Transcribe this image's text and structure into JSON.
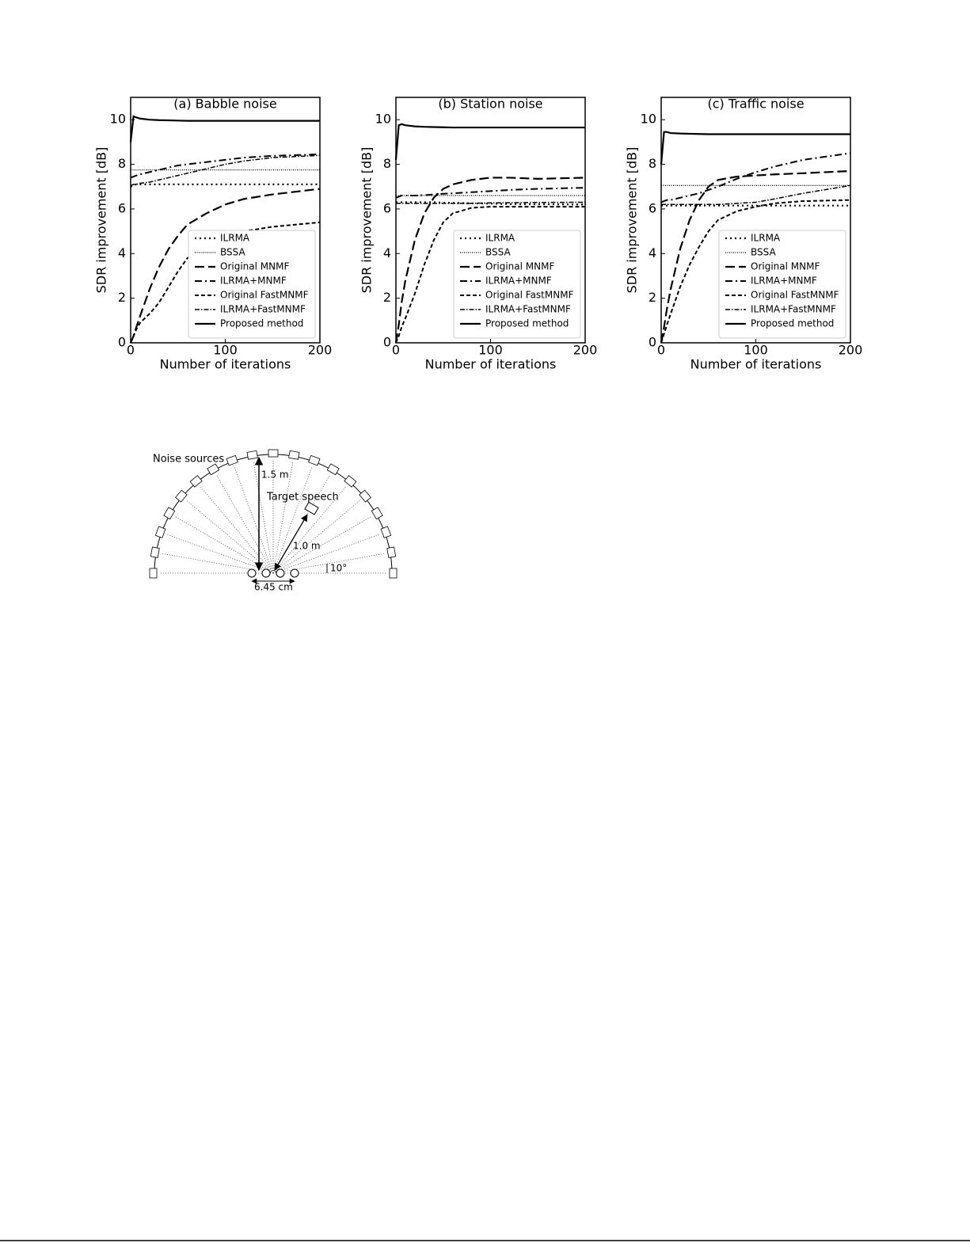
{
  "chart_data": [
    {
      "type": "line",
      "title": "(a) Babble noise",
      "x_label": "Number of iterations",
      "y_label": "SDR improvement [dB]",
      "x": [
        0,
        3,
        6,
        10,
        20,
        30,
        40,
        50,
        60,
        80,
        100,
        120,
        150,
        200
      ],
      "xlim": [
        0,
        200
      ],
      "ylim": [
        0,
        11
      ],
      "xticks": [
        0,
        100,
        200
      ],
      "yticks": [
        0,
        2,
        4,
        6,
        8,
        10
      ],
      "legend": "lower right",
      "series": [
        {
          "name": "ILRMA",
          "color": "#000000",
          "values": [
            7.0,
            7.05,
            7.1,
            7.1,
            7.1,
            7.1,
            7.1,
            7.1,
            7.1,
            7.1,
            7.1,
            7.1,
            7.1,
            7.1
          ]
        },
        {
          "name": "BSSA",
          "color": "#000000",
          "values": [
            7.75,
            7.75,
            7.75,
            7.75,
            7.75,
            7.75,
            7.75,
            7.75,
            7.75,
            7.75,
            7.75,
            7.75,
            7.75,
            7.75
          ]
        },
        {
          "name": "Original MNMF",
          "color": "#000000",
          "values": [
            0,
            0.3,
            0.7,
            1.2,
            2.4,
            3.4,
            4.2,
            4.8,
            5.3,
            5.8,
            6.2,
            6.45,
            6.65,
            6.9
          ]
        },
        {
          "name": "ILRMA+MNMF",
          "color": "#000000",
          "values": [
            7.4,
            7.45,
            7.5,
            7.55,
            7.65,
            7.75,
            7.85,
            7.95,
            8.0,
            8.1,
            8.2,
            8.3,
            8.38,
            8.45
          ]
        },
        {
          "name": "Original FastMNMF",
          "color": "#000000",
          "values": [
            0,
            0.3,
            0.6,
            0.9,
            1.3,
            1.8,
            2.5,
            3.2,
            3.8,
            4.4,
            4.8,
            5.0,
            5.2,
            5.4
          ]
        },
        {
          "name": "ILRMA+FastMNMF",
          "color": "#000000",
          "values": [
            7.05,
            7.1,
            7.1,
            7.15,
            7.2,
            7.3,
            7.4,
            7.5,
            7.6,
            7.8,
            8.0,
            8.15,
            8.3,
            8.4
          ]
        },
        {
          "name": "Proposed method",
          "color": "#000000",
          "values": [
            9.0,
            10.15,
            10.1,
            10.05,
            10.0,
            9.98,
            9.97,
            9.96,
            9.95,
            9.95,
            9.95,
            9.95,
            9.95,
            9.95
          ]
        }
      ]
    },
    {
      "type": "line",
      "title": "(b) Station noise",
      "x_label": "Number of iterations",
      "y_label": "SDR improvement [dB]",
      "x": [
        0,
        3,
        6,
        10,
        20,
        30,
        40,
        50,
        60,
        80,
        100,
        120,
        150,
        200
      ],
      "xlim": [
        0,
        200
      ],
      "ylim": [
        0,
        11
      ],
      "xticks": [
        0,
        100,
        200
      ],
      "yticks": [
        0,
        2,
        4,
        6,
        8,
        10
      ],
      "legend": "lower right",
      "series": [
        {
          "name": "ILRMA",
          "color": "#000000",
          "values": [
            6.3,
            6.3,
            6.3,
            6.3,
            6.3,
            6.3,
            6.3,
            6.28,
            6.27,
            6.25,
            6.24,
            6.22,
            6.21,
            6.2
          ]
        },
        {
          "name": "BSSA",
          "color": "#000000",
          "values": [
            6.6,
            6.6,
            6.6,
            6.6,
            6.6,
            6.6,
            6.6,
            6.6,
            6.6,
            6.6,
            6.6,
            6.6,
            6.6,
            6.6
          ]
        },
        {
          "name": "Original MNMF",
          "color": "#000000",
          "values": [
            0,
            0.8,
            1.8,
            2.8,
            4.6,
            5.8,
            6.5,
            6.9,
            7.1,
            7.3,
            7.4,
            7.4,
            7.35,
            7.4
          ]
        },
        {
          "name": "ILRMA+MNMF",
          "color": "#000000",
          "values": [
            6.5,
            6.55,
            6.6,
            6.6,
            6.6,
            6.62,
            6.65,
            6.68,
            6.7,
            6.75,
            6.8,
            6.85,
            6.9,
            6.95
          ]
        },
        {
          "name": "Original FastMNMF",
          "color": "#000000",
          "values": [
            0,
            0.3,
            0.7,
            1.1,
            2.2,
            3.5,
            4.6,
            5.4,
            5.8,
            6.05,
            6.1,
            6.1,
            6.1,
            6.1
          ]
        },
        {
          "name": "ILRMA+FastMNMF",
          "color": "#000000",
          "values": [
            6.25,
            6.25,
            6.25,
            6.25,
            6.25,
            6.25,
            6.25,
            6.25,
            6.25,
            6.25,
            6.27,
            6.28,
            6.29,
            6.3
          ]
        },
        {
          "name": "Proposed method",
          "color": "#000000",
          "values": [
            8.2,
            9.75,
            9.8,
            9.75,
            9.7,
            9.68,
            9.67,
            9.66,
            9.65,
            9.65,
            9.65,
            9.65,
            9.65,
            9.65
          ]
        }
      ]
    },
    {
      "type": "line",
      "title": "(c) Traffic noise",
      "x_label": "Number of iterations",
      "y_label": "SDR improvement [dB]",
      "x": [
        0,
        3,
        6,
        10,
        20,
        30,
        40,
        50,
        60,
        80,
        100,
        120,
        150,
        200
      ],
      "xlim": [
        0,
        200
      ],
      "ylim": [
        0,
        11
      ],
      "xticks": [
        0,
        100,
        200
      ],
      "yticks": [
        0,
        2,
        4,
        6,
        8,
        10
      ],
      "legend": "lower right",
      "series": [
        {
          "name": "ILRMA",
          "color": "#000000",
          "values": [
            6.15,
            6.15,
            6.15,
            6.15,
            6.15,
            6.15,
            6.15,
            6.15,
            6.15,
            6.15,
            6.15,
            6.15,
            6.15,
            6.15
          ]
        },
        {
          "name": "BSSA",
          "color": "#000000",
          "values": [
            7.05,
            7.05,
            7.05,
            7.05,
            7.05,
            7.05,
            7.05,
            7.05,
            7.05,
            7.05,
            7.05,
            7.05,
            7.05,
            7.05
          ]
        },
        {
          "name": "Original MNMF",
          "color": "#000000",
          "values": [
            0,
            0.7,
            1.5,
            2.4,
            4.2,
            5.5,
            6.4,
            7.0,
            7.3,
            7.45,
            7.5,
            7.55,
            7.6,
            7.7
          ]
        },
        {
          "name": "ILRMA+MNMF",
          "color": "#000000",
          "values": [
            6.3,
            6.35,
            6.4,
            6.4,
            6.5,
            6.6,
            6.7,
            6.85,
            7.0,
            7.35,
            7.65,
            7.9,
            8.2,
            8.5
          ]
        },
        {
          "name": "Original FastMNMF",
          "color": "#000000",
          "values": [
            0,
            0.4,
            0.8,
            1.3,
            2.5,
            3.5,
            4.3,
            5.0,
            5.5,
            5.9,
            6.1,
            6.25,
            6.35,
            6.4
          ]
        },
        {
          "name": "ILRMA+FastMNMF",
          "color": "#000000",
          "values": [
            6.2,
            6.2,
            6.2,
            6.2,
            6.2,
            6.2,
            6.2,
            6.2,
            6.2,
            6.25,
            6.3,
            6.45,
            6.7,
            7.05
          ]
        },
        {
          "name": "Proposed method",
          "color": "#000000",
          "values": [
            8.0,
            9.45,
            9.45,
            9.4,
            9.38,
            9.37,
            9.36,
            9.35,
            9.35,
            9.35,
            9.35,
            9.35,
            9.35,
            9.35
          ]
        }
      ]
    }
  ],
  "diagram": {
    "labels": {
      "noise_sources": "Noise sources",
      "source_distance": "1.5 m",
      "target": "Target speech",
      "target_distance": "1.0 m",
      "angle_step": "10°",
      "mic_spacing": "6.45 cm"
    }
  }
}
